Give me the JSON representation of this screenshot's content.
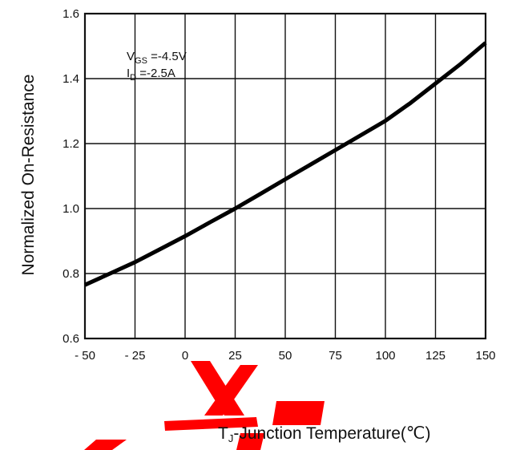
{
  "chart_data": {
    "type": "line",
    "xlabel": "TJ-Junction Temperature(℃)",
    "xlabel_main": "T",
    "xlabel_sub": "J",
    "xlabel_rest": "-Junction Temperature(℃)",
    "ylabel": "Normalized On-Resistance",
    "xlim": [
      -50,
      150
    ],
    "ylim": [
      0.6,
      1.6
    ],
    "x_ticks": [
      -50,
      -25,
      0,
      25,
      50,
      75,
      100,
      125,
      150
    ],
    "x_tick_labels": [
      "- 50",
      "- 25",
      "0",
      "25",
      "50",
      "75",
      "100",
      "125",
      "150"
    ],
    "y_ticks": [
      0.6,
      0.8,
      1.0,
      1.2,
      1.4,
      1.6
    ],
    "y_tick_labels": [
      "0.6",
      "0.8",
      "1.0",
      "1.2",
      "1.4",
      "1.6"
    ],
    "grid": true,
    "annotations": [
      {
        "main": "V",
        "sub": "GS",
        "rest": " =-4.5V"
      },
      {
        "main": "I",
        "sub": "D",
        "rest": " =-2.5A"
      }
    ],
    "series": [
      {
        "x": [
          -50,
          -37.5,
          -25,
          -12.5,
          0,
          12.5,
          25,
          37.5,
          50,
          62.5,
          75,
          87.5,
          100,
          112.5,
          125,
          137.5,
          150
        ],
        "y": [
          0.765,
          0.8,
          0.835,
          0.875,
          0.915,
          0.958,
          1.0,
          1.045,
          1.09,
          1.135,
          1.18,
          1.225,
          1.27,
          1.325,
          1.385,
          1.445,
          1.51
        ]
      }
    ]
  },
  "colors": {
    "line": "#000000",
    "grid": "#111111",
    "watermark": "#ff0000"
  }
}
